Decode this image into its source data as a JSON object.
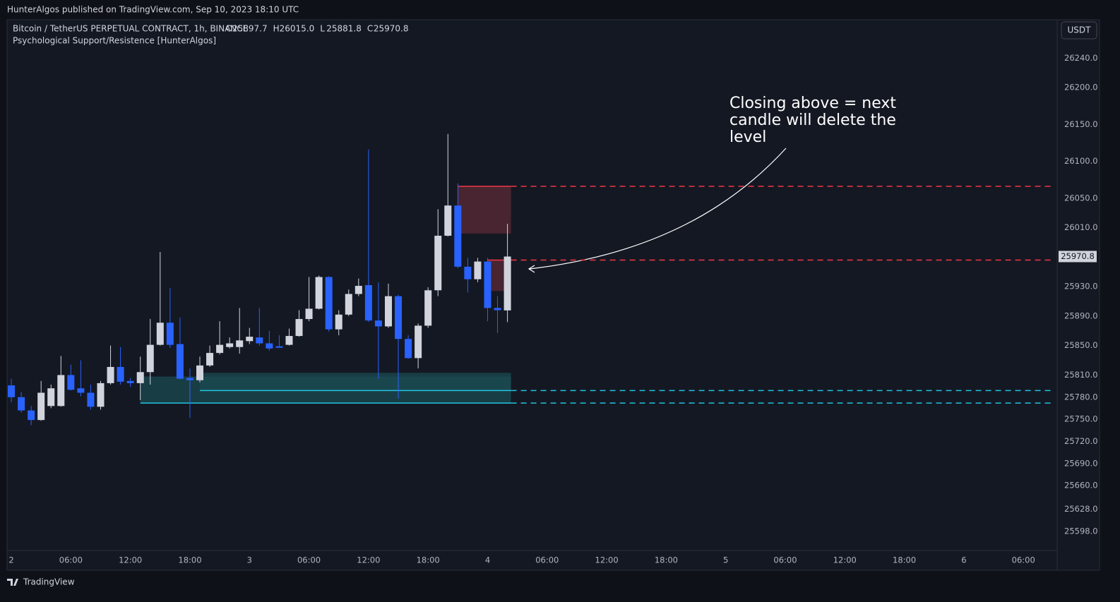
{
  "chart_data": {
    "type": "candlestick",
    "header": "HunterAlgos published on TradingView.com, Sep 10, 2023 18:10 UTC",
    "symbol": "Bitcoin / TetherUS PERPETUAL CONTRACT, 1h, BINANCE",
    "ohlc_prefixes": [
      "O",
      "H",
      "L",
      "C"
    ],
    "ohlc_labels": [
      "25897.7",
      "26015.0",
      "25881.8",
      "25970.8"
    ],
    "indicator": "Psychological Support/Resistence [HunterAlgos]",
    "currency": "USDT",
    "brand": "TradingView",
    "up_color": "#d1d4dc",
    "down_color": "#2962ff",
    "x": [
      0,
      1,
      2,
      3,
      4,
      5,
      6,
      7,
      8,
      9,
      10,
      11,
      12,
      13,
      14,
      15,
      16,
      17,
      18,
      19,
      20,
      21,
      22,
      23,
      24,
      25,
      26,
      27,
      28,
      29,
      30,
      31,
      32,
      33,
      34,
      35,
      36,
      37,
      38,
      39,
      40,
      41,
      42,
      43,
      44,
      45,
      46,
      47,
      48,
      49,
      50
    ],
    "open": [
      25796,
      25780,
      25762,
      25749,
      25768,
      25768,
      25810,
      25792,
      25786,
      25767,
      25799,
      25821,
      25802,
      25799,
      25814,
      25851,
      25881,
      25852,
      25806,
      25803,
      25823,
      25840,
      25848,
      25848,
      25856,
      25861,
      25853,
      25849,
      25851,
      25863,
      25886,
      25900,
      25943,
      25872,
      25892,
      25920,
      25932,
      25884,
      25876,
      25917,
      25859,
      25833,
      25877,
      25925,
      25999,
      26040,
      25957,
      25940,
      25964,
      25901,
      25897.7
    ],
    "high": [
      25805,
      25787,
      25768,
      25802,
      25797,
      25836,
      25824,
      25830,
      25797,
      25802,
      25850,
      25848,
      25806,
      25835,
      25886,
      25977,
      25928,
      25888,
      25819,
      25835,
      25850,
      25883,
      25861,
      25901,
      25874,
      25901,
      25870,
      25864,
      25873,
      25898,
      25943,
      25945,
      25944,
      25898,
      25926,
      25941,
      26116,
      25936,
      25934,
      25919,
      25864,
      25880,
      25929,
      26035,
      26137,
      26070,
      25969,
      25969,
      25969,
      25917,
      26015.0
    ],
    "low": [
      25773,
      25759,
      25742,
      25748,
      25765,
      25767,
      25789,
      25781,
      25763,
      25763,
      25797,
      25797,
      25794,
      25776,
      25797,
      25850,
      25847,
      25804,
      25752,
      25800,
      25821,
      25838,
      25846,
      25839,
      25852,
      25850,
      25843,
      25847,
      25850,
      25862,
      25883,
      25899,
      25869,
      25864,
      25890,
      25917,
      25882,
      25805,
      25874,
      25778,
      25832,
      25819,
      25874,
      25917,
      25998,
      25955,
      25922,
      25936,
      25883,
      25867,
      25881.8
    ],
    "close": [
      25780,
      25762,
      25749,
      25786,
      25792,
      25810,
      25790,
      25786,
      25767,
      25799,
      25821,
      25801,
      25799,
      25814,
      25851,
      25881,
      25851,
      25805,
      25803,
      25823,
      25840,
      25851,
      25853,
      25857,
      25862,
      25853,
      25846,
      25847,
      25863,
      25886,
      25900,
      25943,
      25872,
      25892,
      25920,
      25931,
      25884,
      25876,
      25917,
      25859,
      25833,
      25877,
      25925,
      25999,
      26040,
      25957,
      25940,
      25964,
      25901,
      25898,
      25970.8
    ],
    "xlim": [
      -0.43,
      105.4
    ],
    "xticks": [
      {
        "value": 0,
        "label": "2"
      },
      {
        "value": 6,
        "label": "06:00"
      },
      {
        "value": 12,
        "label": "12:00"
      },
      {
        "value": 18,
        "label": "18:00"
      },
      {
        "value": 24,
        "label": "3"
      },
      {
        "value": 30,
        "label": "06:00"
      },
      {
        "value": 36,
        "label": "12:00"
      },
      {
        "value": 42,
        "label": "18:00"
      },
      {
        "value": 48,
        "label": "4"
      },
      {
        "value": 54,
        "label": "06:00"
      },
      {
        "value": 60,
        "label": "12:00"
      },
      {
        "value": 66,
        "label": "18:00"
      },
      {
        "value": 72,
        "label": "5"
      },
      {
        "value": 78,
        "label": "06:00"
      },
      {
        "value": 84,
        "label": "12:00"
      },
      {
        "value": 90,
        "label": "18:00"
      },
      {
        "value": 96,
        "label": "6"
      },
      {
        "value": 102,
        "label": "06:00"
      }
    ],
    "ylim": [
      25572,
      26292
    ],
    "yticks": [
      {
        "value": 26240,
        "label": "26240.0"
      },
      {
        "value": 26200,
        "label": "26200.0"
      },
      {
        "value": 26150,
        "label": "26150.0"
      },
      {
        "value": 26100,
        "label": "26100.0"
      },
      {
        "value": 26050,
        "label": "26050.0"
      },
      {
        "value": 26010,
        "label": "26010.0"
      },
      {
        "value": 25930,
        "label": "25930.0"
      },
      {
        "value": 25890,
        "label": "25890.0"
      },
      {
        "value": 25850,
        "label": "25850.0"
      },
      {
        "value": 25810,
        "label": "25810.0"
      },
      {
        "value": 25780,
        "label": "25780.0"
      },
      {
        "value": 25750,
        "label": "25750.0"
      },
      {
        "value": 25720,
        "label": "25720.0"
      },
      {
        "value": 25690,
        "label": "25690.0"
      },
      {
        "value": 25660,
        "label": "25660.0"
      },
      {
        "value": 25628,
        "label": "25628.0"
      },
      {
        "value": 25598,
        "label": "25598.0"
      }
    ],
    "zones": [
      {
        "top": 26066,
        "bottom": 26002,
        "start": 45,
        "color": "#5a2a35"
      },
      {
        "top": 25966,
        "bottom": 25924,
        "start": 48,
        "color": "#5a2a35"
      },
      {
        "top": 25808,
        "bottom": 25772,
        "start": 13,
        "color": "#1b4a52"
      },
      {
        "top": 25813,
        "bottom": 25789,
        "start": 19,
        "color": "#1b4a52"
      }
    ],
    "levels": [
      {
        "value": 26066,
        "start": 45,
        "color": "#f23645"
      },
      {
        "value": 25966,
        "start": 48,
        "color": "#f23645"
      },
      {
        "value": 25789,
        "start": 19,
        "color": "#22c4e0"
      },
      {
        "value": 25772,
        "start": 13,
        "color": "#22c4e0"
      }
    ],
    "annotation": [
      "Closing above = next",
      "candle will delete the",
      "level"
    ]
  }
}
